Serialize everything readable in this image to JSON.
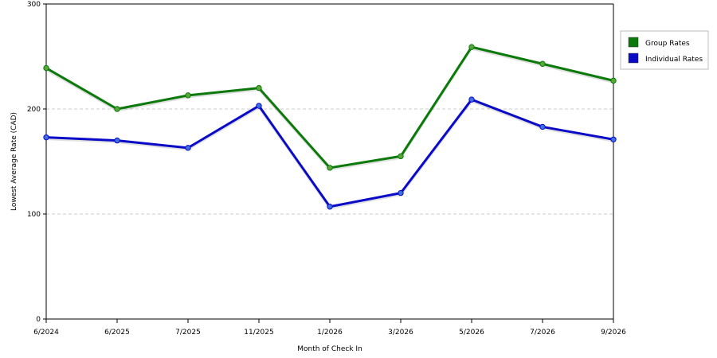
{
  "chart_data": {
    "type": "line",
    "title": "",
    "xlabel": "Month of Check In",
    "ylabel": "Lowest Average Rate (CAD)",
    "categories": [
      "6/2024",
      "6/2025",
      "7/2025",
      "11/2025",
      "1/2026",
      "3/2026",
      "5/2026",
      "7/2026",
      "9/2026"
    ],
    "yticks": [
      "0",
      "100",
      "200",
      "300"
    ],
    "ylim": [
      0,
      300
    ],
    "grid": true,
    "legend_position": "right",
    "series": [
      {
        "name": "Group Rates",
        "color": "#0b7a0b",
        "marker_color": "#5aa83a",
        "values": [
          239,
          200,
          213,
          220,
          144,
          155,
          259,
          243,
          227
        ]
      },
      {
        "name": "Individual Rates",
        "color": "#0a0ac8",
        "marker_color": "#3d6fe0",
        "values": [
          173,
          170,
          163,
          203,
          107,
          120,
          209,
          183,
          171
        ]
      }
    ]
  }
}
